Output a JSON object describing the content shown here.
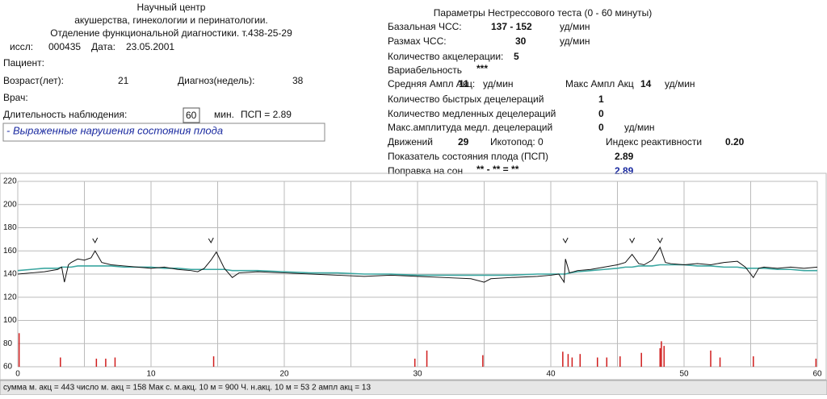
{
  "header": {
    "lines": [
      "Научный центр",
      "акушерства, гинекологии и перинатологии.",
      "Отделение функциональной диагностики. т.438-25-29"
    ],
    "study_label": "иссл:",
    "study": "000435",
    "date_label": "Дата:",
    "date": "23.05.2001",
    "patient": "Пациент:",
    "age_label": "Возраст(лет):",
    "age": "21",
    "term_label": "Диагноз(недель):",
    "term": "38",
    "doctor": "Врач:",
    "duration_label": "Длительность наблюдения:",
    "duration": "60",
    "duration_unit": "мин.",
    "psp": "ПСП = 2.89",
    "conclusion": "- Выраженные нарушения состояния плода"
  },
  "params": {
    "title": "Параметры Нестрессового теста (0 - 60 минуты)",
    "basal_label": "Базальная ЧСС:",
    "basal": "137 - 152",
    "basal_unit": "уд/мин",
    "range_label": "Размах ЧСС:",
    "range": "30",
    "range_unit": "уд/мин",
    "acc_label": "Количество  акцелерации:",
    "acc": "5",
    "var_label": "Вариабельность",
    "var": "***",
    "mean_amp_label": "Средняя Ампл Акц:",
    "mean_amp": "11",
    "mean_amp_unit": "уд/мин",
    "max_amp_label": "Макс Ампл Акц",
    "max_amp": "14",
    "max_amp_unit": "уд/мин",
    "fast_dec_label": "Количество быстрых децелераций",
    "fast_dec": "1",
    "slow_dec_label": "Количество медленных децелераций",
    "slow_dec": "0",
    "max_slow_label": "Макс.амплитуда медл. децелераций",
    "max_slow": "0",
    "max_slow_unit": "уд/мин",
    "moves_label": "Движений",
    "moves": "29",
    "hiccups": "Икотопод: 0",
    "react_label": "Индекс реактивности",
    "react": "0.20",
    "state_label": "Показатель состояния плода (ПСП)",
    "state": "2.89",
    "sleep_label": "Поправка на сон",
    "sleep": "** - ** = **",
    "sleep_value": "2.89"
  },
  "status": "сумма м. акц = 443  число м. акц = 158  Мак с. м.акц. 10 м = 900  Ч. н.акц. 10 м = 53  2 ампл акц = 13",
  "chart_data": {
    "type": "line",
    "xlim": [
      0,
      60
    ],
    "ylim": [
      60,
      220
    ],
    "xticks": [
      0,
      10,
      20,
      30,
      40,
      50,
      60
    ],
    "yticks": [
      60,
      80,
      100,
      120,
      140,
      160,
      180,
      200,
      220
    ],
    "xgrid": [
      0,
      5,
      10,
      15,
      20,
      25,
      30,
      35,
      40,
      45,
      50,
      55,
      60
    ],
    "grid": true,
    "x": [
      0,
      1,
      2,
      3,
      3.3,
      3.5,
      3.8,
      4,
      4.5,
      5,
      5.5,
      5.8,
      6.3,
      7,
      8,
      9,
      10,
      11,
      12,
      13,
      13.5,
      14,
      14.5,
      14.9,
      15.5,
      16.1,
      16.6,
      18,
      20,
      22,
      24,
      26,
      28,
      30,
      32,
      34,
      35,
      35.5,
      37,
      39,
      40,
      40.6,
      41,
      41.1,
      41.4,
      42,
      43,
      44,
      45,
      45.6,
      46.1,
      46.6,
      47,
      47.6,
      48.2,
      48.6,
      49,
      50,
      51,
      52,
      53,
      54,
      54.6,
      55.2,
      55.6,
      56,
      57,
      58,
      59,
      60
    ],
    "series": [
      {
        "color": "#111111",
        "values": [
          140,
          141,
          142,
          144,
          146,
          133,
          148,
          150,
          153,
          152,
          154,
          160,
          150,
          148,
          147,
          146,
          145,
          146,
          144,
          143,
          142,
          145,
          152,
          159,
          145,
          137,
          141,
          142,
          141,
          140,
          139,
          138,
          139,
          138,
          137,
          136,
          133,
          136,
          137,
          138,
          139,
          140,
          133,
          153,
          141,
          143,
          144,
          146,
          148,
          150,
          157,
          149,
          148,
          152,
          163,
          150,
          149,
          148,
          149,
          148,
          150,
          151,
          146,
          137,
          145,
          146,
          145,
          146,
          145,
          146
        ]
      },
      {
        "color": "#3aa6a0",
        "values": [
          143,
          144,
          145,
          145,
          146,
          146,
          146,
          146,
          147,
          147,
          147,
          147,
          147,
          147,
          146,
          146,
          146,
          145,
          145,
          144,
          144,
          144,
          144,
          144,
          144,
          143,
          143,
          143,
          142,
          141,
          141,
          140,
          140,
          139,
          139,
          139,
          139,
          139,
          139,
          140,
          140,
          140,
          140,
          140,
          141,
          142,
          143,
          144,
          145,
          146,
          146,
          147,
          147,
          147,
          148,
          148,
          148,
          148,
          147,
          147,
          146,
          146,
          145,
          145,
          145,
          145,
          144,
          144,
          143,
          143
        ]
      }
    ],
    "acceleration_x": [
      5.8,
      14.5,
      41.1,
      46.1,
      48.2
    ],
    "movements": {
      "color": "#d01c1c",
      "x": [
        0.1,
        3.2,
        5.9,
        6.6,
        7.3,
        14.7,
        29.8,
        30.7,
        34.9,
        40.9,
        41.3,
        41.6,
        42.2,
        43.5,
        44.2,
        45.2,
        46.8,
        48.2,
        48.3,
        48.5,
        52,
        52.7,
        55.2,
        59.9
      ],
      "values": [
        89,
        68,
        67,
        67,
        68,
        69,
        67,
        74,
        70,
        73,
        71,
        68,
        71,
        68,
        68,
        69,
        72,
        76,
        82,
        78,
        74,
        68,
        69,
        67
      ]
    }
  }
}
